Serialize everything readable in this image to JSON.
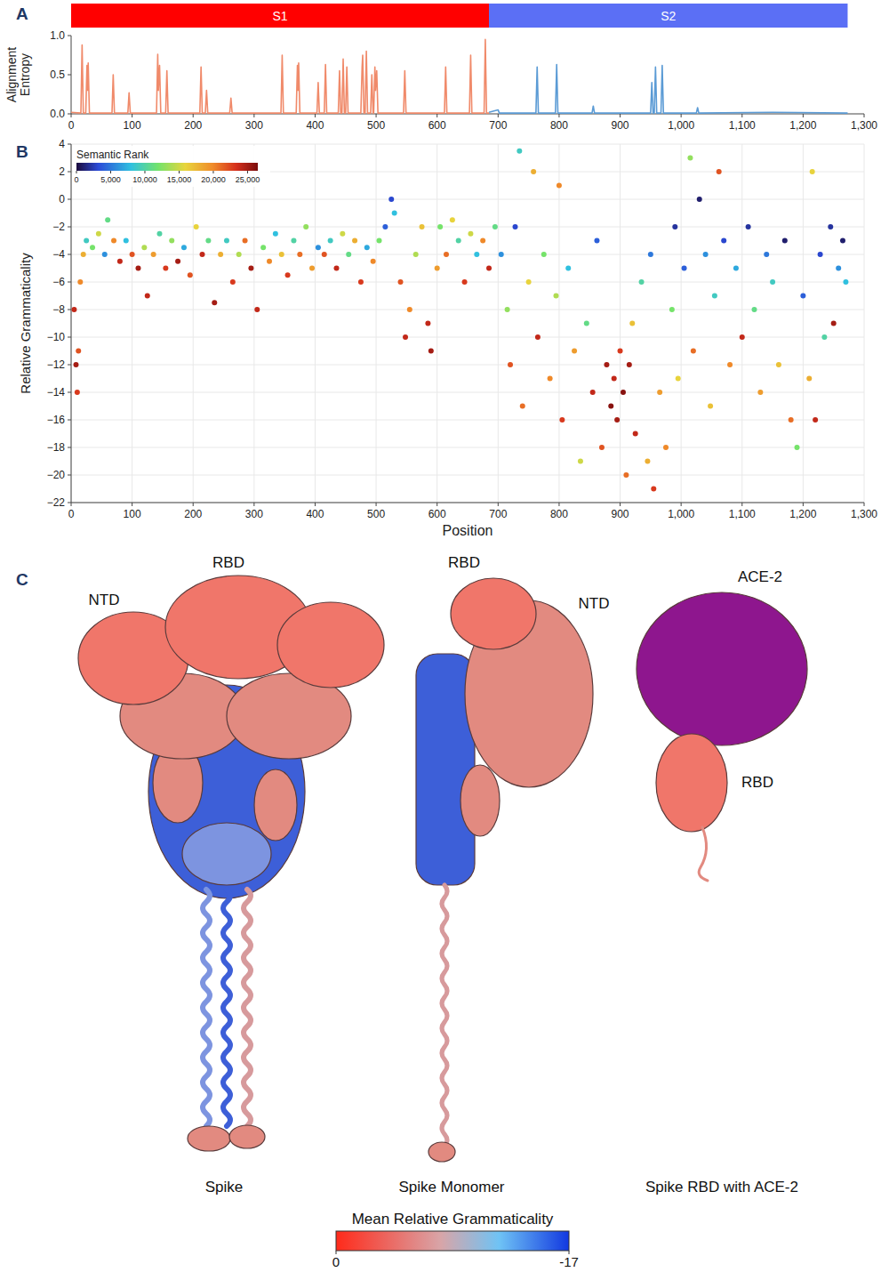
{
  "chart_data": [
    {
      "panel": "A",
      "type": "line",
      "y_label": "Alignment Entropy",
      "domains": [
        {
          "label": "S1",
          "start": 0,
          "end": 685,
          "color": "#ff0000"
        },
        {
          "label": "S2",
          "start": 685,
          "end": 1273,
          "color": "#5b6ff5"
        }
      ],
      "xlim": [
        0,
        1300
      ],
      "xticks": [
        0,
        100,
        200,
        300,
        400,
        500,
        600,
        700,
        800,
        900,
        {
          "value": 1000,
          "label": "1,000"
        },
        {
          "value": 1100,
          "label": "1,100"
        },
        {
          "value": 1200,
          "label": "1,200"
        },
        {
          "value": 1300,
          "label": "1,300"
        }
      ],
      "ylim": [
        0,
        1
      ],
      "yticks": [
        {
          "value": 0,
          "label": "0.0"
        },
        {
          "value": 0.5,
          "label": "0.5"
        },
        {
          "value": 1,
          "label": "1.0"
        }
      ],
      "grid": false,
      "series": [
        {
          "color": "#f08a6a",
          "x": [
            0,
            16,
            18,
            20,
            24,
            26,
            27,
            28,
            30,
            67,
            69,
            71,
            93,
            95,
            97,
            140,
            142,
            143,
            145,
            147,
            155,
            157,
            159,
            211,
            213,
            215,
            220,
            222,
            224,
            260,
            262,
            264,
            344,
            346,
            348,
            369,
            371,
            372,
            373,
            375,
            403,
            405,
            407,
            415,
            417,
            419,
            438,
            440,
            442,
            444,
            446,
            448,
            450,
            452,
            454,
            475,
            477,
            478,
            480,
            482,
            484,
            486,
            491,
            493,
            495,
            496,
            498,
            499,
            501,
            503,
            545,
            547,
            549,
            612,
            614,
            616,
            653,
            655,
            657,
            677,
            679,
            681,
            685
          ],
          "values": [
            0.02,
            0.01,
            0.88,
            0.01,
            0.01,
            0.62,
            0.3,
            0.65,
            0.01,
            0.01,
            0.5,
            0.01,
            0.01,
            0.27,
            0.01,
            0.01,
            0.76,
            0.3,
            0.62,
            0.01,
            0.01,
            0.55,
            0.01,
            0.01,
            0.6,
            0.01,
            0.01,
            0.3,
            0.01,
            0.01,
            0.2,
            0.01,
            0.01,
            0.75,
            0.01,
            0.01,
            0.62,
            0.3,
            0.65,
            0.01,
            0.01,
            0.4,
            0.01,
            0.01,
            0.63,
            0.01,
            0.01,
            0.55,
            0.01,
            0.01,
            0.7,
            0.01,
            0.01,
            0.6,
            0.01,
            0.01,
            0.6,
            0.75,
            0.01,
            0.01,
            0.8,
            0.01,
            0.01,
            0.5,
            0.01,
            0.01,
            0.6,
            0.3,
            0.55,
            0.01,
            0.01,
            0.55,
            0.01,
            0.01,
            0.6,
            0.01,
            0.01,
            0.75,
            0.01,
            0.01,
            0.95,
            0.01,
            0.01
          ]
        },
        {
          "color": "#5b9bd5",
          "x": [
            685,
            700,
            702,
            762,
            764,
            766,
            794,
            796,
            798,
            854,
            856,
            858,
            950,
            952,
            954,
            956,
            958,
            960,
            967,
            969,
            971,
            1025,
            1027,
            1029,
            1150,
            1273
          ],
          "values": [
            0.02,
            0.05,
            0.01,
            0.01,
            0.6,
            0.01,
            0.01,
            0.63,
            0.01,
            0.01,
            0.1,
            0.01,
            0.01,
            0.4,
            0.01,
            0.01,
            0.6,
            0.01,
            0.01,
            0.62,
            0.01,
            0.01,
            0.08,
            0.01,
            0.02,
            0.01
          ]
        }
      ]
    },
    {
      "panel": "B",
      "type": "scatter",
      "x_label": "Position",
      "y_label": "Relative Grammaticality",
      "xlim": [
        0,
        1300
      ],
      "xticks": [
        0,
        100,
        200,
        300,
        400,
        500,
        600,
        700,
        800,
        900,
        {
          "value": 1000,
          "label": "1,000"
        },
        {
          "value": 1100,
          "label": "1,100"
        },
        {
          "value": 1200,
          "label": "1,200"
        },
        {
          "value": 1300,
          "label": "1,300"
        }
      ],
      "ylim": [
        -22,
        4
      ],
      "yticks": [
        4,
        2,
        0,
        {
          "value": -2,
          "label": "−2"
        },
        {
          "value": -4,
          "label": "−4"
        },
        {
          "value": -6,
          "label": "−6"
        },
        {
          "value": -8,
          "label": "−8"
        },
        {
          "value": -10,
          "label": "−10"
        },
        {
          "value": -12,
          "label": "−12"
        },
        {
          "value": -14,
          "label": "−14"
        },
        {
          "value": -16,
          "label": "−16"
        },
        {
          "value": -18,
          "label": "−18"
        },
        {
          "value": -20,
          "label": "−20"
        },
        {
          "value": -22,
          "label": "−22"
        }
      ],
      "grid": true,
      "marker": "circle",
      "colorbar": {
        "title": "Semantic Rank",
        "range": [
          0,
          26500
        ],
        "ticks": [
          0,
          {
            "value": 5000,
            "label": "5,000"
          },
          {
            "value": 10000,
            "label": "10,000"
          },
          {
            "value": 15000,
            "label": "15,000"
          },
          {
            "value": 20000,
            "label": "20,000"
          },
          {
            "value": 25000,
            "label": "25,000"
          }
        ]
      },
      "x": [
        5,
        8,
        10,
        12,
        15,
        20,
        25,
        35,
        45,
        55,
        60,
        70,
        80,
        90,
        100,
        110,
        120,
        125,
        135,
        145,
        155,
        165,
        175,
        185,
        195,
        205,
        215,
        225,
        235,
        245,
        255,
        265,
        275,
        285,
        295,
        305,
        315,
        325,
        335,
        345,
        355,
        365,
        375,
        385,
        395,
        405,
        415,
        425,
        435,
        445,
        455,
        465,
        475,
        485,
        495,
        505,
        515,
        525,
        530,
        540,
        548,
        555,
        565,
        575,
        585,
        590,
        600,
        605,
        615,
        625,
        635,
        645,
        655,
        665,
        675,
        685,
        695,
        705,
        715,
        720,
        728,
        735,
        740,
        750,
        758,
        765,
        775,
        785,
        795,
        800,
        805,
        815,
        825,
        835,
        845,
        855,
        862,
        870,
        878,
        885,
        890,
        895,
        900,
        905,
        910,
        915,
        920,
        925,
        935,
        945,
        950,
        955,
        965,
        975,
        985,
        990,
        995,
        1005,
        1015,
        1020,
        1030,
        1040,
        1048,
        1055,
        1062,
        1070,
        1080,
        1090,
        1100,
        1110,
        1120,
        1130,
        1140,
        1150,
        1160,
        1170,
        1180,
        1190,
        1200,
        1210,
        1215,
        1220,
        1228,
        1235,
        1245,
        1250,
        1258,
        1265,
        1270
      ],
      "values": [
        -8,
        -12,
        -14,
        -11,
        -6,
        -4,
        -3,
        -3.5,
        -2.5,
        -4,
        -1.5,
        -3,
        -4.5,
        -3,
        -4,
        -5,
        -3.5,
        -7,
        -4,
        -2.5,
        -5,
        -3,
        -4.5,
        -3.5,
        -5.5,
        -2,
        -4,
        -3,
        -7.5,
        -4,
        -3,
        -6,
        -4,
        -3,
        -5,
        -8,
        -3.5,
        -4.5,
        -2.5,
        -4,
        -5.5,
        -3,
        -4,
        -2,
        -5,
        -3.5,
        -4,
        -3,
        -5,
        -2.5,
        -4,
        -3,
        -6,
        -3.5,
        -4.5,
        -3,
        -2,
        0,
        -1,
        -6,
        -10,
        -8,
        -4,
        -2,
        -9,
        -11,
        -5,
        -2,
        -4,
        -1.5,
        -3,
        -6,
        -2.5,
        -4,
        -3,
        -5,
        -2,
        -4,
        -8,
        -12,
        -2,
        3.5,
        -15,
        -6,
        2,
        -10,
        -4,
        -13,
        -7,
        1,
        -16,
        -5,
        -11,
        -19,
        -9,
        -14,
        -3,
        -18,
        -12,
        -15,
        -13,
        -16,
        -11,
        -14,
        -20,
        -12,
        -9,
        -17,
        -6,
        -19,
        -4,
        -21,
        -14,
        -18,
        -8,
        -2,
        -13,
        -5,
        3,
        -11,
        0,
        -4,
        -15,
        -7,
        2,
        -3,
        -12,
        -5,
        -10,
        -2,
        -8,
        -14,
        -4,
        -6,
        -12,
        -3,
        -16,
        -18,
        -7,
        -13,
        2,
        -16,
        -4,
        -10,
        -2,
        -9,
        -5,
        -3,
        -6
      ],
      "ranks": [
        24000,
        25000,
        23000,
        22000,
        20000,
        18000,
        9000,
        12000,
        15000,
        6000,
        11000,
        20000,
        24000,
        8000,
        22000,
        25000,
        14000,
        24000,
        19000,
        10000,
        23000,
        13000,
        25000,
        7000,
        22000,
        16000,
        24000,
        11000,
        25000,
        18000,
        9000,
        23000,
        14000,
        21000,
        25000,
        24000,
        12000,
        20000,
        8000,
        17000,
        23000,
        10000,
        21000,
        13000,
        19000,
        6000,
        22000,
        9000,
        24000,
        15000,
        11000,
        18000,
        23000,
        7000,
        20000,
        12000,
        4000,
        3000,
        8000,
        22000,
        24000,
        20000,
        14000,
        17000,
        24000,
        25000,
        19000,
        12000,
        21000,
        16000,
        10000,
        23000,
        15000,
        8000,
        20000,
        24000,
        11000,
        6000,
        13000,
        22000,
        3000,
        9000,
        21000,
        16000,
        18000,
        24000,
        12000,
        20000,
        14000,
        20000,
        23000,
        8000,
        19000,
        15000,
        11000,
        24000,
        4000,
        22000,
        25000,
        26000,
        24000,
        25000,
        23000,
        26000,
        21000,
        25000,
        17000,
        24000,
        10000,
        18000,
        5000,
        23000,
        19000,
        20000,
        12000,
        2000,
        16000,
        4000,
        13000,
        21000,
        1000,
        6000,
        17000,
        9000,
        22000,
        3000,
        20000,
        7000,
        24000,
        2000,
        11000,
        19000,
        5000,
        9000,
        17000,
        1000,
        21000,
        12000,
        4000,
        18000,
        16000,
        24000,
        3000,
        10000,
        2000,
        25000,
        6000,
        1000,
        8000
      ]
    },
    {
      "panel": "C",
      "type": "structure",
      "structures": [
        {
          "title": "Spike",
          "labels": [
            "NTD",
            "RBD"
          ]
        },
        {
          "title": "Spike Monomer",
          "labels": [
            "RBD",
            "NTD"
          ]
        },
        {
          "title": "Spike RBD with ACE-2",
          "labels": [
            "ACE-2",
            "RBD"
          ]
        }
      ],
      "colorbar": {
        "title": "Mean Relative Grammaticality",
        "range": [
          0,
          -17
        ],
        "ticks": [
          0,
          -17
        ]
      }
    }
  ]
}
